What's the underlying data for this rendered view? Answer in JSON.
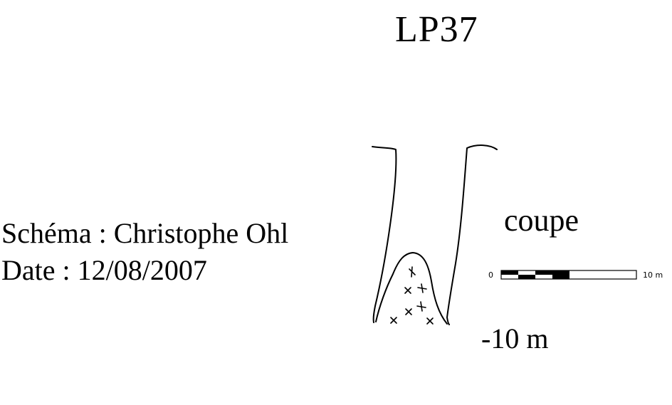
{
  "title": "LP37",
  "credits": {
    "author_line": "Schéma : Christophe Ohl",
    "date_line": "Date : 12/08/2007"
  },
  "section_label": "coupe",
  "depth_label": "-10 m",
  "scale_bar": {
    "start_label": "0",
    "end_label": "10 m"
  },
  "colors": {
    "ink": "#000000",
    "background": "#ffffff"
  }
}
